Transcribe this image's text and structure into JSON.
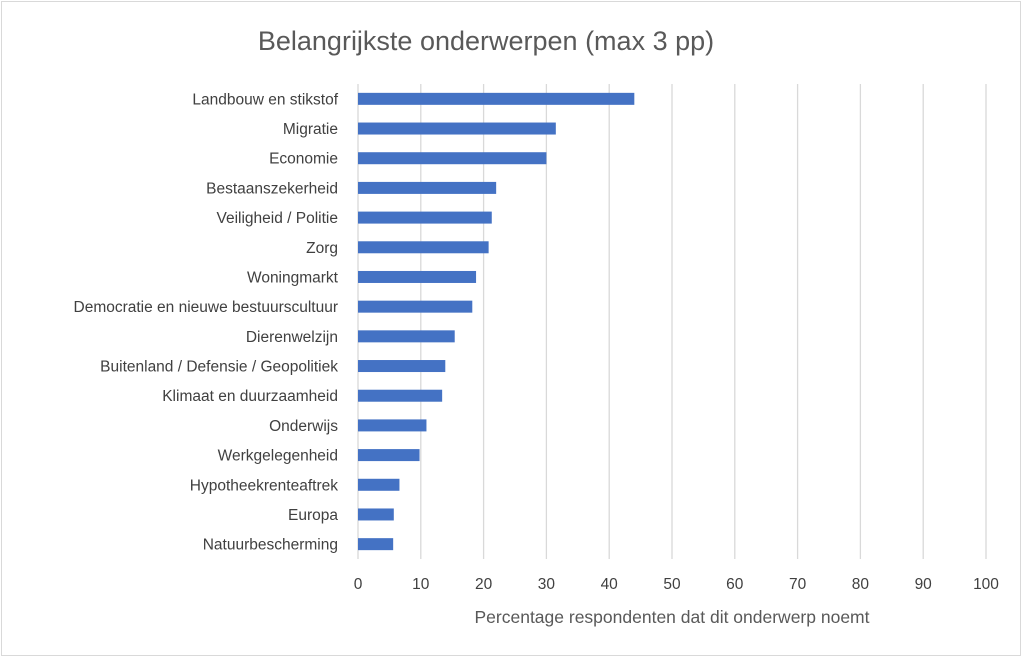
{
  "chart_data": {
    "type": "bar",
    "orientation": "horizontal",
    "title": "Belangrijkste onderwerpen (max 3 pp)",
    "xlabel": "Percentage respondenten dat dit onderwerp noemt",
    "ylabel": "",
    "xlim": [
      0,
      100
    ],
    "xticks": [
      0,
      10,
      20,
      30,
      40,
      50,
      60,
      70,
      80,
      90,
      100
    ],
    "grid": true,
    "bar_color": "#4472c4",
    "categories": [
      "Landbouw en stikstof",
      "Migratie",
      "Economie",
      "Bestaanszekerheid",
      "Veiligheid / Politie",
      "Zorg",
      "Woningmarkt",
      "Democratie en nieuwe bestuurscultuur",
      "Dierenwelzijn",
      "Buitenland / Defensie / Geopolitiek",
      "Klimaat en duurzaamheid",
      "Onderwijs",
      "Werkgelegenheid",
      "Hypotheekrenteaftrek",
      "Europa",
      "Natuurbescherming"
    ],
    "values": [
      44,
      31.5,
      30,
      22,
      21.3,
      20.8,
      18.8,
      18.2,
      15.4,
      13.9,
      13.4,
      10.9,
      9.8,
      6.6,
      5.7,
      5.6
    ]
  }
}
